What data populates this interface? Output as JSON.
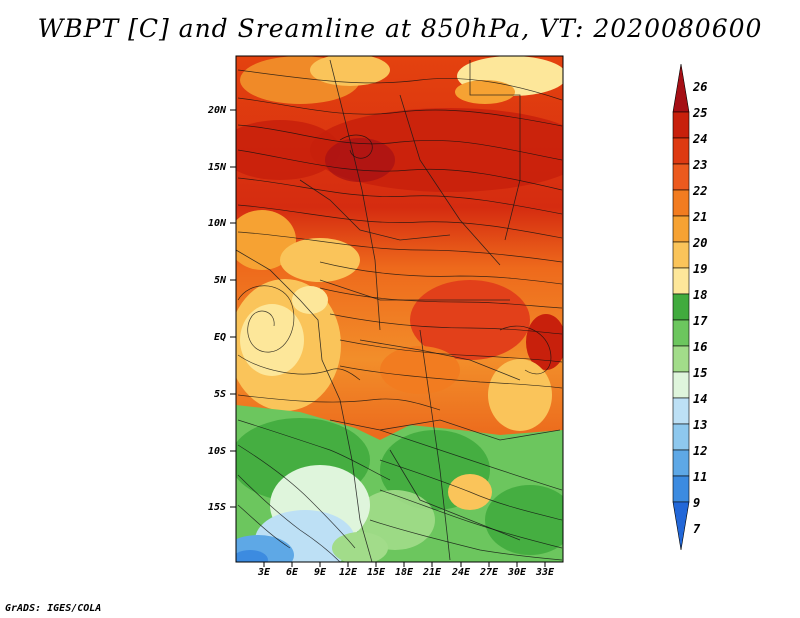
{
  "title": "WBPT [C] and Sreamline at 850hPa, VT: 2020080600",
  "footer": "GrADS: IGES/COLA",
  "map": {
    "lat_labels": [
      "20N",
      "15N",
      "10N",
      "5N",
      "EQ",
      "5S",
      "10S",
      "15S"
    ],
    "lon_labels": [
      "3E",
      "6E",
      "9E",
      "12E",
      "15E",
      "18E",
      "21E",
      "24E",
      "27E",
      "30E",
      "33E"
    ]
  },
  "colorbar": {
    "labels": [
      "26",
      "25",
      "24",
      "23",
      "22",
      "21",
      "20",
      "19",
      "18",
      "17",
      "16",
      "15",
      "14",
      "13",
      "12",
      "11",
      "9",
      "7"
    ],
    "colors": [
      "#a50f15",
      "#c8200c",
      "#de3a12",
      "#ec5a1e",
      "#f27c20",
      "#f6a233",
      "#fac45a",
      "#fde79a",
      "#41ab3e",
      "#6cc65e",
      "#a2dc8a",
      "#dff5dc",
      "#bde0f5",
      "#8ec8ee",
      "#5ea8e6",
      "#3c8be0",
      "#2267d8"
    ]
  }
}
